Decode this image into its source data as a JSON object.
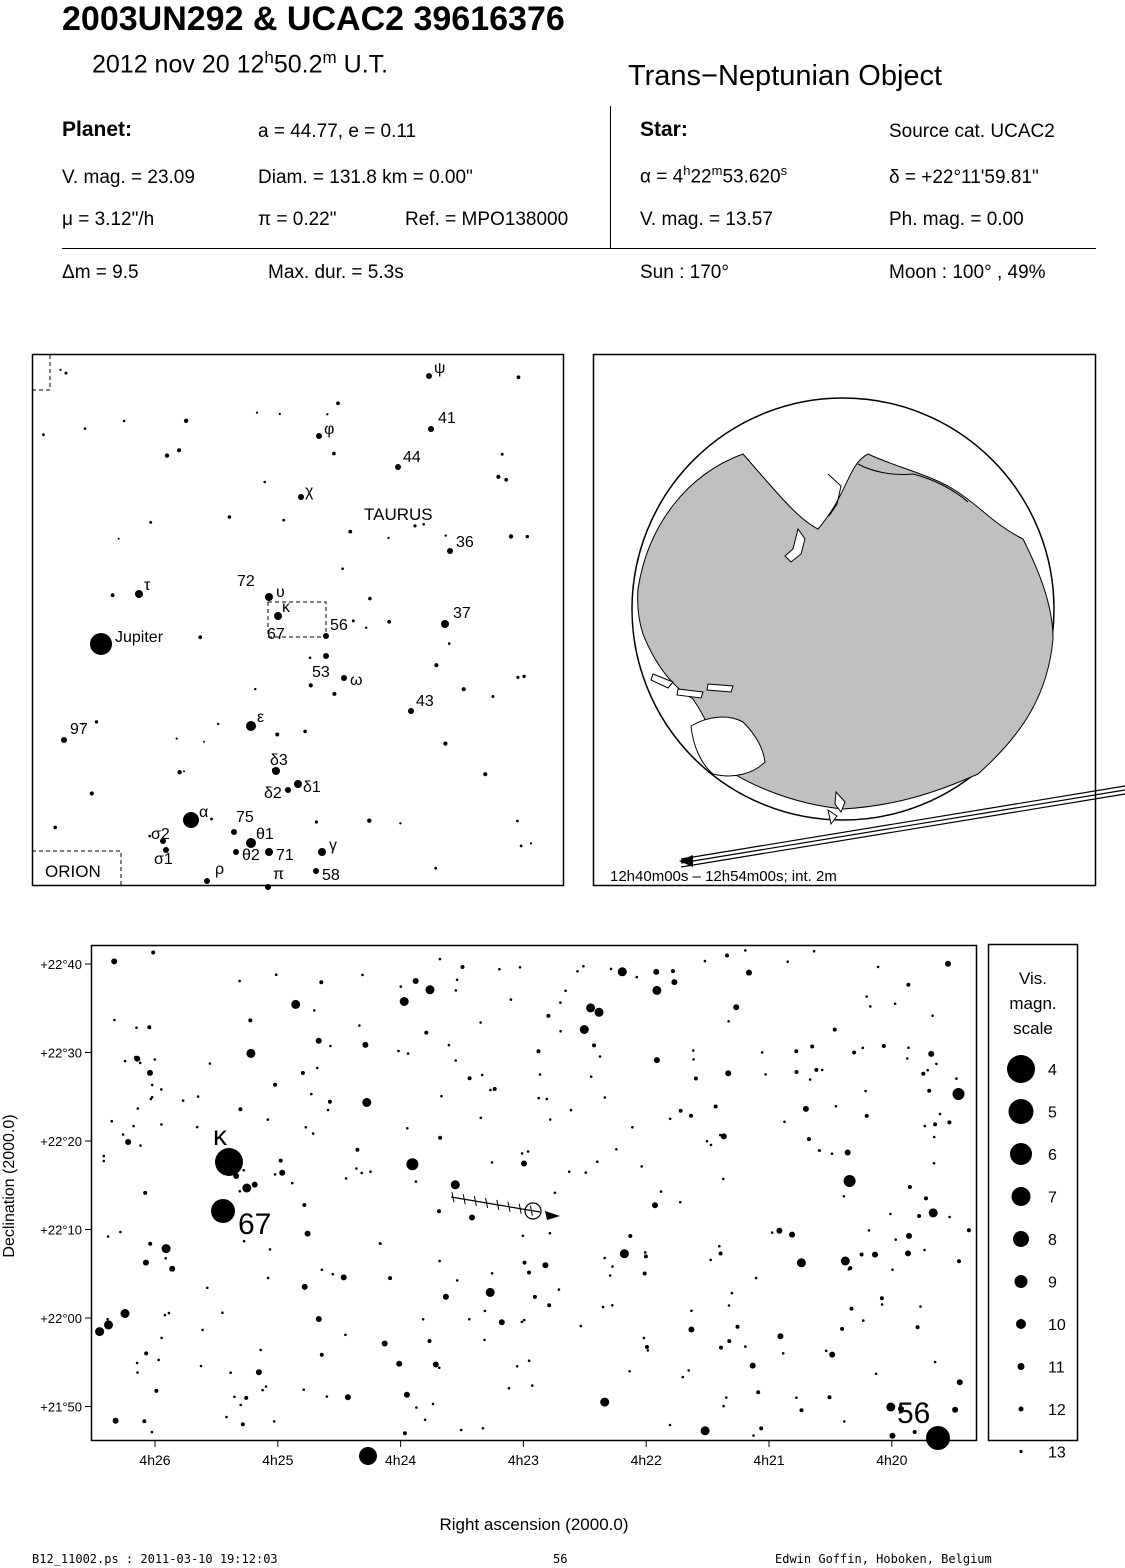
{
  "header": {
    "title": "2003UN292  &  UCAC2 39616376",
    "date": "2012 nov 20  12",
    "time_h": "h",
    "time_min": "50.2",
    "time_m": "m",
    "time_ut": " U.T.",
    "object_type": "Trans−Neptunian Object"
  },
  "planet": {
    "label": "Planet:",
    "orbit": "a = 44.77, e = 0.11",
    "vmag": "V. mag. = 23.09",
    "diam": "Diam. = 131.8 km = 0.00\"",
    "mu": "μ =  3.12\"/h",
    "pi": "π =  0.22\"",
    "ref": "Ref. = MPO138000"
  },
  "star": {
    "label": "Star:",
    "source": "Source cat.  UCAC2",
    "ra_prefix": "α =  4",
    "ra_h": "h",
    "ra_min": "22",
    "ra_m": "m",
    "ra_sec": "53.620",
    "ra_s": "s",
    "dec": "δ = +22°11'59.81\"",
    "vmag": "V. mag. = 13.57",
    "phmag": "Ph. mag. =  0.00"
  },
  "summary": {
    "dm": "Δm = 9.5",
    "maxdur": "Max. dur. = 5.3s",
    "sun": "Sun : 170°",
    "moon": "Moon : 100° , 49%"
  },
  "finder": {
    "constellation": "TAURUS",
    "orion": "ORION",
    "jupiter": "Jupiter",
    "labels": [
      "ψ",
      "41",
      "φ",
      "44",
      "χ",
      "36",
      "72",
      "υ",
      "κ",
      "56",
      "67",
      "37",
      "τ",
      "53",
      "ω",
      "43",
      "ε",
      "97",
      "δ3",
      "δ2",
      "δ1",
      "α",
      "75",
      "σ2",
      "θ1",
      "σ1",
      "θ2",
      "71",
      "γ",
      "ρ",
      "π",
      "58"
    ]
  },
  "globe": {
    "path_label": "12h40m00s – 12h54m00s; int.  2m"
  },
  "detail": {
    "ylabel": "Declination (2000.0)",
    "xlabel": "Right ascension (2000.0)",
    "yticks": [
      "+22°40",
      "+22°30",
      "+22°20",
      "+22°10",
      "+22°00",
      "+21°50"
    ],
    "xticks": [
      "4h26",
      "4h25",
      "4h24",
      "4h23",
      "4h22",
      "4h21",
      "4h20"
    ],
    "star_labels": {
      "kappa": "κ",
      "s67": "67",
      "s56": "56"
    }
  },
  "legend": {
    "title1": "Vis.",
    "title2": "magn.",
    "title3": "scale",
    "mags": [
      "4",
      "5",
      "6",
      "7",
      "8",
      "9",
      "10",
      "11",
      "12",
      "13"
    ]
  },
  "footer": {
    "file": "B12_11002.ps : 2011-03-10 19:12:03",
    "page": "56",
    "author": "Edwin Goffin, Hoboken, Belgium"
  }
}
